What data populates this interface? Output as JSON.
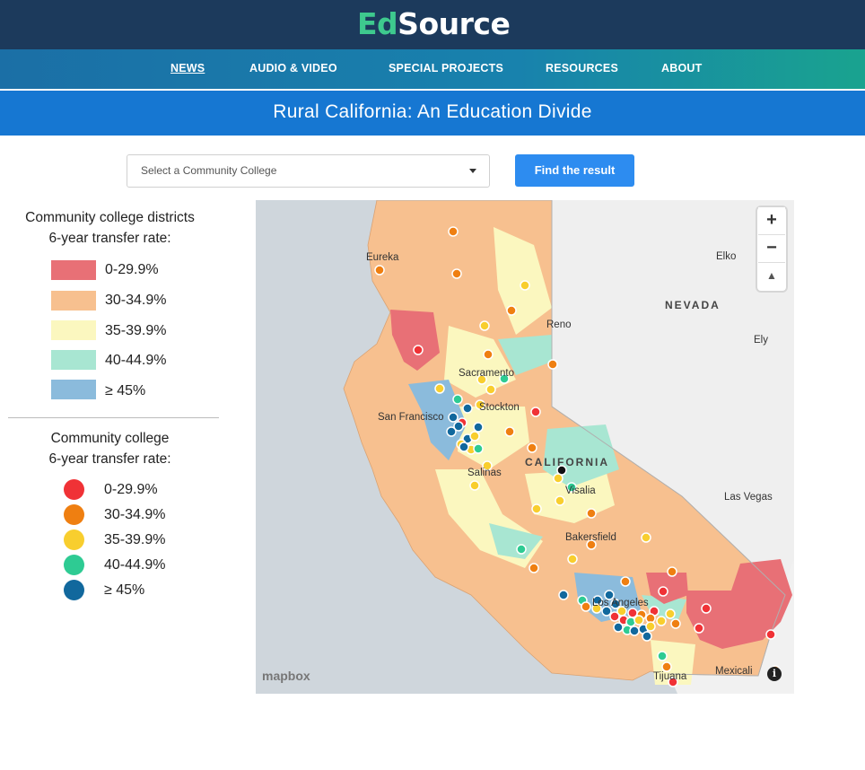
{
  "header": {
    "logo_part1": "Ed",
    "logo_part2": "Source"
  },
  "nav": {
    "items": [
      {
        "label": "NEWS"
      },
      {
        "label": "AUDIO & VIDEO"
      },
      {
        "label": "SPECIAL PROJECTS"
      },
      {
        "label": "RESOURCES"
      },
      {
        "label": "ABOUT"
      }
    ]
  },
  "banner": {
    "title": "Rural California: An Education Divide"
  },
  "controls": {
    "select_placeholder": "Select a Community College",
    "find_label": "Find the result"
  },
  "legend_districts": {
    "title1": "Community college districts",
    "title2": "6-year transfer rate:",
    "items": [
      {
        "label": "0-29.9%",
        "color": "#e87076"
      },
      {
        "label": "30-34.9%",
        "color": "#f7c08f"
      },
      {
        "label": "35-39.9%",
        "color": "#fbf7bf"
      },
      {
        "label": "40-44.9%",
        "color": "#a8e6d2"
      },
      {
        "label": "≥ 45%",
        "color": "#8bbbdc"
      }
    ]
  },
  "legend_colleges": {
    "title1": "Community college",
    "title2": "6-year transfer rate:",
    "items": [
      {
        "label": "0-29.9%",
        "color": "#f03236"
      },
      {
        "label": "30-34.9%",
        "color": "#ef7f11"
      },
      {
        "label": "35-39.9%",
        "color": "#f8ce2e"
      },
      {
        "label": "40-44.9%",
        "color": "#2ecb93"
      },
      {
        "label": "≥ 45%",
        "color": "#11689d"
      }
    ]
  },
  "map": {
    "state_label": "CALIFORNIA",
    "nevada_label": "NEVADA",
    "cities": [
      {
        "name": "Eureka"
      },
      {
        "name": "Elko"
      },
      {
        "name": "Reno"
      },
      {
        "name": "Ely"
      },
      {
        "name": "Sacramento"
      },
      {
        "name": "Stockton"
      },
      {
        "name": "San Francisco"
      },
      {
        "name": "Salinas"
      },
      {
        "name": "Visalia"
      },
      {
        "name": "Las Vegas"
      },
      {
        "name": "Bakersfield"
      },
      {
        "name": "Los Angeles"
      },
      {
        "name": "Mexicali"
      },
      {
        "name": "Tijuana"
      }
    ],
    "zoom_in_label": "+",
    "zoom_out_label": "−",
    "compass_label": "▲",
    "attribution": "mapbox",
    "info_label": "i"
  }
}
